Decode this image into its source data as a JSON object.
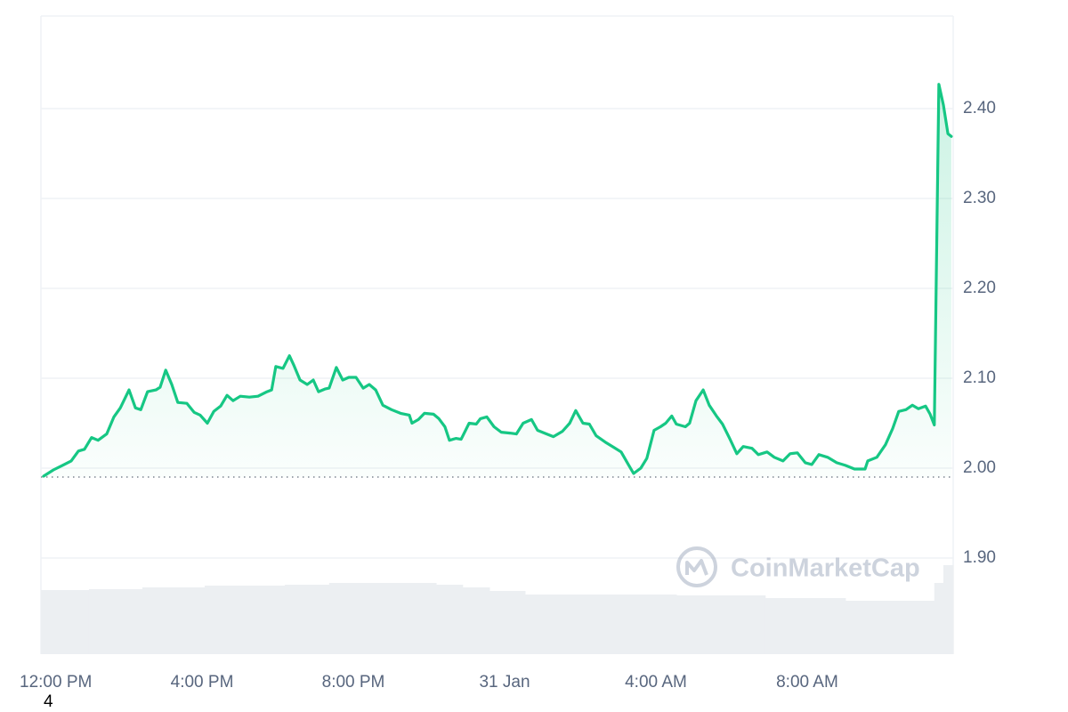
{
  "chart_data": {
    "type": "line",
    "watermark": "CoinMarketCap",
    "footnote": "4",
    "color": "#16c784",
    "grid": true,
    "reference_line": 1.99,
    "xlim": [
      -0.26,
      23.86
    ],
    "xticks": [
      {
        "value": 0,
        "label": "12:00 PM"
      },
      {
        "value": 4,
        "label": "4:00 PM"
      },
      {
        "value": 8,
        "label": "8:00 PM"
      },
      {
        "value": 12,
        "label": "31 Jan"
      },
      {
        "value": 16,
        "label": "4:00 AM"
      },
      {
        "value": 20,
        "label": "8:00 AM"
      }
    ],
    "ylim": [
      1.793,
      2.503
    ],
    "yticks": [
      {
        "value": 1.9,
        "label": "1.90"
      },
      {
        "value": 2.0,
        "label": "2.00"
      },
      {
        "value": 2.1,
        "label": "2.10"
      },
      {
        "value": 2.2,
        "label": "2.20"
      },
      {
        "value": 2.3,
        "label": "2.30"
      },
      {
        "value": 2.4,
        "label": "2.40"
      }
    ],
    "x": [
      -0.19,
      0.07,
      0.31,
      0.54,
      0.73,
      0.89,
      1.08,
      1.25,
      1.48,
      1.67,
      1.84,
      2.07,
      2.24,
      2.38,
      2.56,
      2.78,
      2.89,
      3.04,
      3.2,
      3.36,
      3.6,
      3.79,
      3.95,
      4.14,
      4.31,
      4.49,
      4.66,
      4.82,
      5.01,
      5.25,
      5.48,
      5.72,
      5.84,
      5.95,
      6.14,
      6.31,
      6.42,
      6.59,
      6.78,
      6.94,
      7.08,
      7.25,
      7.36,
      7.55,
      7.72,
      7.88,
      8.07,
      8.26,
      8.42,
      8.59,
      8.78,
      9.01,
      9.25,
      9.48,
      9.55,
      9.72,
      9.88,
      10.12,
      10.26,
      10.42,
      10.54,
      10.71,
      10.85,
      11.06,
      11.25,
      11.36,
      11.53,
      11.72,
      11.91,
      12.14,
      12.31,
      12.49,
      12.71,
      12.87,
      13.11,
      13.29,
      13.53,
      13.72,
      13.88,
      14.07,
      14.24,
      14.42,
      14.66,
      14.89,
      15.08,
      15.27,
      15.41,
      15.6,
      15.76,
      15.95,
      16.12,
      16.26,
      16.42,
      16.54,
      16.78,
      16.89,
      17.06,
      17.25,
      17.41,
      17.6,
      17.76,
      17.95,
      18.14,
      18.31,
      18.54,
      18.71,
      18.94,
      19.13,
      19.36,
      19.55,
      19.74,
      19.95,
      20.12,
      20.31,
      20.54,
      20.78,
      21.01,
      21.25,
      21.53,
      21.6,
      21.84,
      22.07,
      22.26,
      22.42,
      22.61,
      22.78,
      22.94,
      23.13,
      23.25,
      23.36,
      23.48,
      23.6,
      23.72,
      23.81
    ],
    "values": [
      1.991,
      1.998,
      2.003,
      2.008,
      2.019,
      2.021,
      2.034,
      2.031,
      2.038,
      2.057,
      2.067,
      2.087,
      2.067,
      2.065,
      2.085,
      2.087,
      2.09,
      2.109,
      2.093,
      2.073,
      2.072,
      2.062,
      2.059,
      2.05,
      2.063,
      2.069,
      2.081,
      2.075,
      2.08,
      2.079,
      2.08,
      2.085,
      2.087,
      2.113,
      2.111,
      2.125,
      2.115,
      2.098,
      2.093,
      2.098,
      2.085,
      2.088,
      2.089,
      2.112,
      2.098,
      2.101,
      2.101,
      2.089,
      2.093,
      2.087,
      2.07,
      2.065,
      2.061,
      2.059,
      2.05,
      2.054,
      2.061,
      2.06,
      2.055,
      2.046,
      2.031,
      2.033,
      2.032,
      2.05,
      2.049,
      2.055,
      2.057,
      2.046,
      2.04,
      2.039,
      2.038,
      2.05,
      2.054,
      2.042,
      2.038,
      2.035,
      2.041,
      2.05,
      2.064,
      2.05,
      2.049,
      2.036,
      2.029,
      2.023,
      2.018,
      2.004,
      1.994,
      2.0,
      2.011,
      2.042,
      2.046,
      2.05,
      2.058,
      2.049,
      2.046,
      2.05,
      2.075,
      2.087,
      2.07,
      2.058,
      2.049,
      2.033,
      2.016,
      2.024,
      2.022,
      2.015,
      2.018,
      2.012,
      2.008,
      2.016,
      2.017,
      2.006,
      2.004,
      2.015,
      2.012,
      2.006,
      2.003,
      1.999,
      1.999,
      2.008,
      2.012,
      2.026,
      2.044,
      2.063,
      2.065,
      2.07,
      2.066,
      2.069,
      2.06,
      2.048,
      2.427,
      2.404,
      2.372,
      2.369
    ],
    "volume": {
      "color": "#eceff2",
      "x": [
        -0.26,
        1.01,
        2.42,
        4.07,
        6.19,
        7.36,
        10.19,
        10.89,
        11.6,
        12.54,
        16.54,
        18.89,
        21.01,
        23.36,
        23.6
      ],
      "values": [
        72,
        73,
        75,
        77,
        78,
        80,
        78,
        75,
        71,
        67,
        66,
        63,
        60,
        80,
        100
      ]
    }
  }
}
